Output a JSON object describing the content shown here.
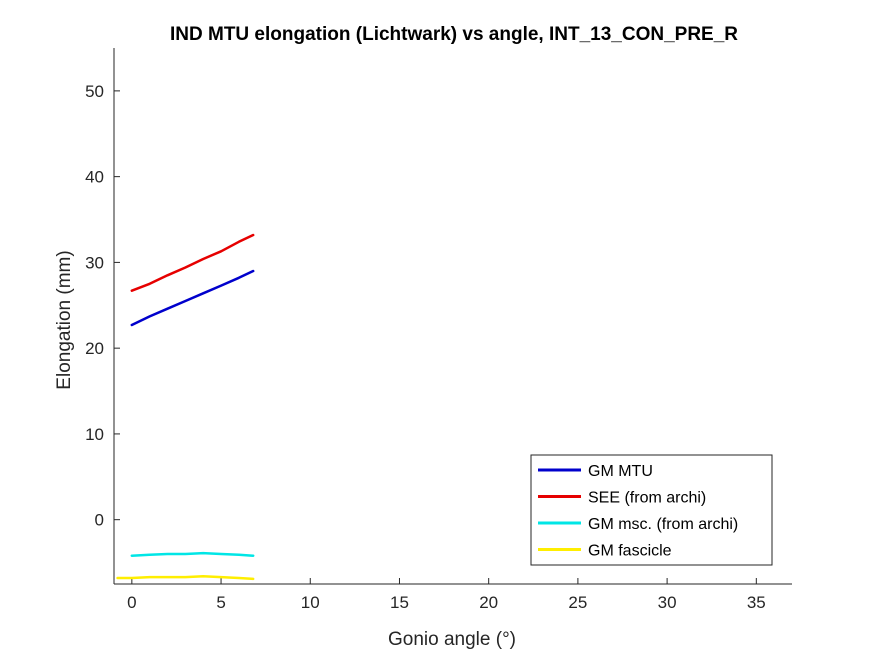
{
  "chart_data": {
    "type": "line",
    "title": "IND MTU elongation (Lichtwark) vs angle, INT_13_CON_PRE_R",
    "xlabel": "Gonio angle (°)",
    "ylabel": "Elongation (mm)",
    "xlim": [
      -1,
      37
    ],
    "ylim": [
      -7.5,
      55
    ],
    "xticks": [
      0,
      5,
      10,
      15,
      20,
      25,
      30,
      35
    ],
    "yticks": [
      0,
      10,
      20,
      30,
      40,
      50
    ],
    "grid": false,
    "legend_position": "bottom-right",
    "series": [
      {
        "name": "GM MTU",
        "color": "#0000cc",
        "x": [
          0,
          1,
          2,
          3,
          4,
          5,
          6,
          6.8
        ],
        "y": [
          22.7,
          23.7,
          24.6,
          25.5,
          26.4,
          27.3,
          28.2,
          29.0
        ]
      },
      {
        "name": "SEE (from archi)",
        "color": "#e60000",
        "x": [
          0,
          1,
          2,
          3,
          4,
          5,
          6,
          6.8
        ],
        "y": [
          26.7,
          27.5,
          28.5,
          29.4,
          30.4,
          31.3,
          32.4,
          33.2
        ]
      },
      {
        "name": "GM msc. (from archi)",
        "color": "#00e6e6",
        "x": [
          0,
          1,
          2,
          3,
          4,
          5,
          6,
          6.8
        ],
        "y": [
          -4.2,
          -4.1,
          -4.0,
          -4.0,
          -3.9,
          -4.0,
          -4.1,
          -4.2
        ]
      },
      {
        "name": "GM fascicle",
        "color": "#ffee00",
        "x": [
          -0.8,
          0,
          1,
          2,
          3,
          4,
          5,
          6,
          6.8
        ],
        "y": [
          -6.8,
          -6.8,
          -6.7,
          -6.7,
          -6.7,
          -6.6,
          -6.7,
          -6.8,
          -6.9
        ]
      }
    ]
  }
}
